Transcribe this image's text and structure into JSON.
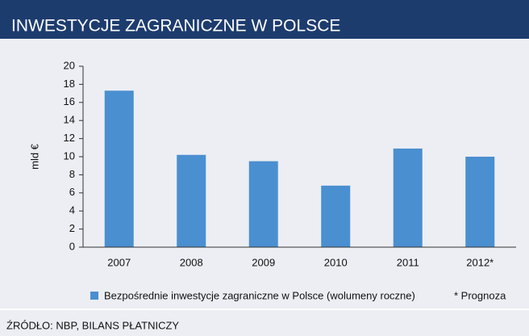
{
  "chart_data": {
    "type": "bar",
    "title": "INWESTYCJE ZAGRANICZNE W POLSCE",
    "y_label": "mld €",
    "categories": [
      "2007",
      "2008",
      "2009",
      "2010",
      "2011",
      "2012*"
    ],
    "series": [
      {
        "name": "Bezpośrednie inwestycje zagraniczne w Polsce (wolumeny roczne)",
        "color": "#4a8fd0",
        "values": [
          17.3,
          10.2,
          9.5,
          6.8,
          10.9,
          10.0
        ]
      }
    ],
    "ylim": [
      0,
      20
    ],
    "yticks": [
      0,
      2,
      4,
      6,
      8,
      10,
      12,
      14,
      16,
      18,
      20
    ],
    "grid": false,
    "note": "* Prognoza",
    "source": "ŹRÓDŁO: NBP, BILANS PŁATNICZY"
  }
}
